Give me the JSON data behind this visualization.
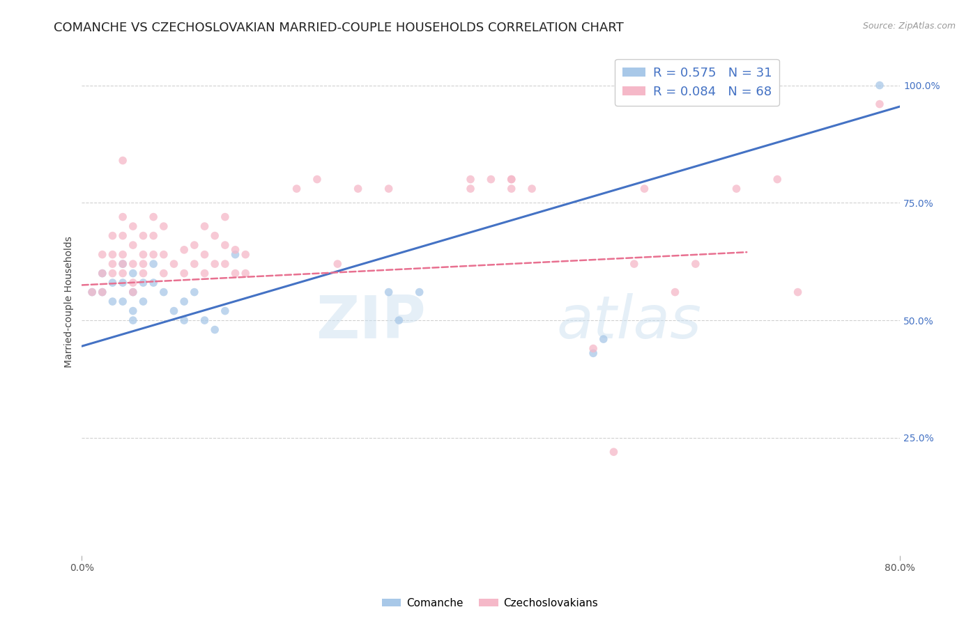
{
  "title": "COMANCHE VS CZECHOSLOVAKIAN MARRIED-COUPLE HOUSEHOLDS CORRELATION CHART",
  "source": "Source: ZipAtlas.com",
  "ylabel_label": "Married-couple Households",
  "xmin": 0.0,
  "xmax": 0.8,
  "ymin": 0.0,
  "ymax": 1.08,
  "yticks": [
    0.25,
    0.5,
    0.75,
    1.0
  ],
  "ytick_labels": [
    "25.0%",
    "50.0%",
    "75.0%",
    "100.0%"
  ],
  "xticks": [
    0.0,
    0.8
  ],
  "xtick_labels": [
    "0.0%",
    "80.0%"
  ],
  "legend_blue_R": "R = 0.575",
  "legend_blue_N": "N = 31",
  "legend_pink_R": "R = 0.084",
  "legend_pink_N": "N = 68",
  "legend_blue_label": "Comanche",
  "legend_pink_label": "Czechoslovakians",
  "watermark": "ZIPatlas",
  "blue_scatter_x": [
    0.01,
    0.02,
    0.02,
    0.03,
    0.03,
    0.04,
    0.04,
    0.04,
    0.05,
    0.05,
    0.05,
    0.05,
    0.06,
    0.06,
    0.07,
    0.07,
    0.08,
    0.09,
    0.1,
    0.1,
    0.11,
    0.12,
    0.13,
    0.14,
    0.15,
    0.3,
    0.31,
    0.33,
    0.5,
    0.51,
    0.78
  ],
  "blue_scatter_y": [
    0.56,
    0.6,
    0.56,
    0.58,
    0.54,
    0.62,
    0.58,
    0.54,
    0.6,
    0.56,
    0.52,
    0.5,
    0.58,
    0.54,
    0.62,
    0.58,
    0.56,
    0.52,
    0.54,
    0.5,
    0.56,
    0.5,
    0.48,
    0.52,
    0.64,
    0.56,
    0.5,
    0.56,
    0.43,
    0.46,
    1.0
  ],
  "pink_scatter_x": [
    0.01,
    0.02,
    0.02,
    0.02,
    0.03,
    0.03,
    0.03,
    0.03,
    0.04,
    0.04,
    0.04,
    0.04,
    0.04,
    0.05,
    0.05,
    0.05,
    0.05,
    0.05,
    0.06,
    0.06,
    0.06,
    0.06,
    0.07,
    0.07,
    0.07,
    0.08,
    0.08,
    0.08,
    0.09,
    0.1,
    0.1,
    0.11,
    0.11,
    0.12,
    0.12,
    0.12,
    0.13,
    0.13,
    0.14,
    0.14,
    0.14,
    0.15,
    0.15,
    0.16,
    0.16,
    0.04,
    0.21,
    0.23,
    0.25,
    0.27,
    0.3,
    0.38,
    0.38,
    0.4,
    0.42,
    0.42,
    0.42,
    0.44,
    0.5,
    0.52,
    0.54,
    0.55,
    0.58,
    0.6,
    0.64,
    0.68,
    0.7,
    0.78
  ],
  "pink_scatter_y": [
    0.56,
    0.56,
    0.6,
    0.64,
    0.6,
    0.62,
    0.64,
    0.68,
    0.6,
    0.62,
    0.64,
    0.68,
    0.72,
    0.56,
    0.58,
    0.62,
    0.66,
    0.7,
    0.6,
    0.62,
    0.64,
    0.68,
    0.64,
    0.68,
    0.72,
    0.6,
    0.64,
    0.7,
    0.62,
    0.6,
    0.65,
    0.62,
    0.66,
    0.6,
    0.64,
    0.7,
    0.62,
    0.68,
    0.62,
    0.66,
    0.72,
    0.6,
    0.65,
    0.6,
    0.64,
    0.84,
    0.78,
    0.8,
    0.62,
    0.78,
    0.78,
    0.8,
    0.78,
    0.8,
    0.78,
    0.8,
    0.8,
    0.78,
    0.44,
    0.22,
    0.62,
    0.78,
    0.56,
    0.62,
    0.78,
    0.8,
    0.56,
    0.96
  ],
  "blue_line_x": [
    0.0,
    0.8
  ],
  "blue_line_y": [
    0.445,
    0.955
  ],
  "pink_line_x": [
    0.0,
    0.65
  ],
  "pink_line_y": [
    0.575,
    0.645
  ],
  "grid_color": "#d0d0d0",
  "blue_color": "#a8c8e8",
  "pink_color": "#f5b8c8",
  "blue_line_color": "#4472c4",
  "pink_line_color": "#e87090",
  "background_color": "#ffffff",
  "scatter_size": 70,
  "scatter_alpha": 0.75,
  "title_fontsize": 13,
  "axis_label_fontsize": 10,
  "tick_fontsize": 10,
  "tick_color_y": "#4472c4",
  "tick_color_x": "#555555"
}
